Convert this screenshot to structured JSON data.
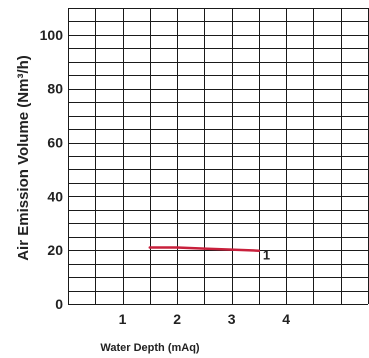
{
  "chart_data": {
    "type": "line",
    "xlabel": "Water Depth (mAq)",
    "ylabel": "Air Emission Volume (Nm³/h)",
    "xlim": [
      0,
      5.5
    ],
    "ylim": [
      0,
      110
    ],
    "x_ticks": [
      1,
      2,
      3,
      4
    ],
    "y_ticks": [
      0,
      20,
      40,
      60,
      80,
      100
    ],
    "x_grid_step": 0.5,
    "y_grid_step": 5,
    "grid": true,
    "legend": "none",
    "series": [
      {
        "label": "1",
        "color": "#c8203c",
        "x": [
          1.5,
          2.0,
          2.5,
          3.0,
          3.5
        ],
        "y": [
          21,
          21,
          20.6,
          20.2,
          19.8
        ]
      }
    ]
  }
}
